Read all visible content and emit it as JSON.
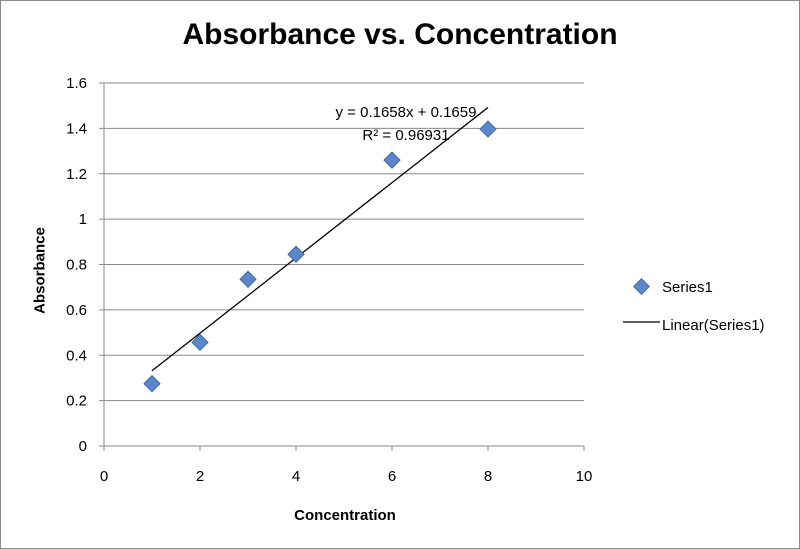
{
  "chart_data": {
    "type": "scatter",
    "title": "Absorbance vs. Concentration",
    "xlabel": "Concentration",
    "ylabel": "Absorbance",
    "xlim": [
      0,
      10
    ],
    "ylim": [
      0,
      1.6
    ],
    "xticks": [
      "0",
      "2",
      "4",
      "6",
      "8",
      "10"
    ],
    "yticks": [
      "0",
      "0.2",
      "0.4",
      "0.6",
      "0.8",
      "1",
      "1.2",
      "1.4",
      "1.6"
    ],
    "grid": "horizontal",
    "series": [
      {
        "name": "Series1",
        "marker": "diamond",
        "color": "#5b86c9",
        "x": [
          1,
          2,
          3,
          4,
          6,
          8
        ],
        "y": [
          0.275,
          0.457,
          0.735,
          0.845,
          1.26,
          1.397
        ]
      }
    ],
    "trendline": {
      "name": "Linear(Series1)",
      "slope": 0.1658,
      "intercept": 0.1659,
      "x_range": [
        1,
        8
      ],
      "equation": "y = 0.1658x + 0.1659",
      "r_squared": "R² = 0.96931"
    },
    "legend": {
      "position": "right",
      "series_label": "Series1",
      "trend_label": "Linear(Series1)"
    }
  }
}
